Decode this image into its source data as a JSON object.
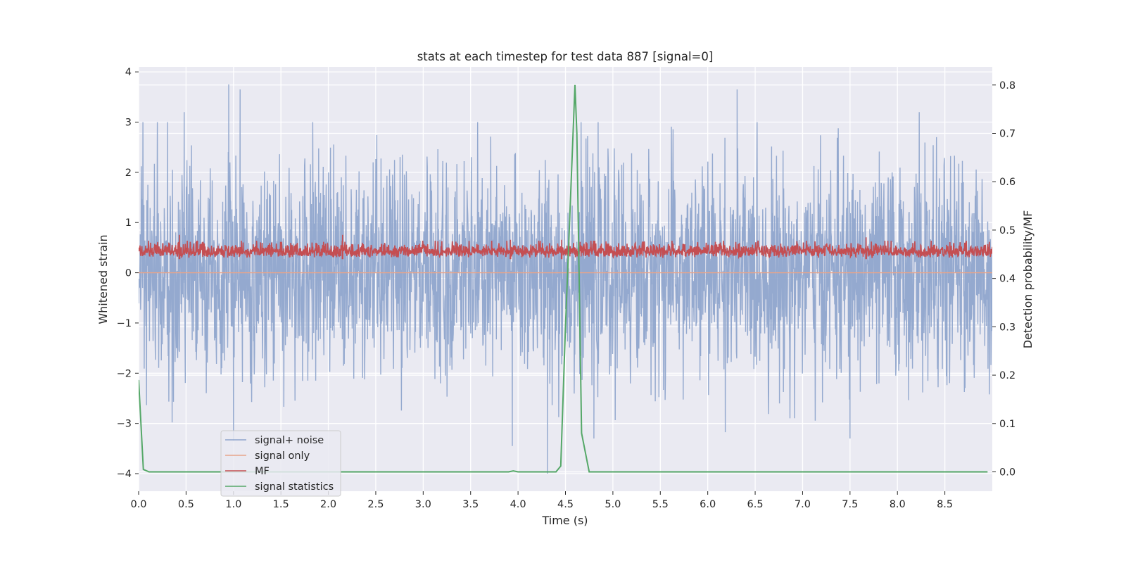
{
  "chart_data": {
    "type": "line",
    "title": "stats at each timestep for test data 887 [signal=0]",
    "xlabel": "Time (s)",
    "ylabel_left": "Whitened strain",
    "ylabel_right": "Detection probability/MF",
    "xlim": [
      0.0,
      9.0
    ],
    "ylim_left": [
      -4.35,
      4.1
    ],
    "ylim_right": [
      -0.04,
      0.8375
    ],
    "x_ticks": [
      "0.0",
      "0.5",
      "1.0",
      "1.5",
      "2.0",
      "2.5",
      "3.0",
      "3.5",
      "4.0",
      "4.5",
      "5.0",
      "5.5",
      "6.0",
      "6.5",
      "7.0",
      "7.5",
      "8.0",
      "8.5"
    ],
    "x_tick_values": [
      0.0,
      0.5,
      1.0,
      1.5,
      2.0,
      2.5,
      3.0,
      3.5,
      4.0,
      4.5,
      5.0,
      5.5,
      6.0,
      6.5,
      7.0,
      7.5,
      8.0,
      8.5
    ],
    "y_left_ticks": [
      "4",
      "3",
      "2",
      "1",
      "0",
      "−1",
      "−2",
      "−3",
      "−4"
    ],
    "y_left_tick_values": [
      4,
      3,
      2,
      1,
      0,
      -1,
      -2,
      -3,
      -4
    ],
    "y_right_ticks": [
      "0.8",
      "0.7",
      "0.6",
      "0.5",
      "0.4",
      "0.3",
      "0.2",
      "0.1",
      "0.0"
    ],
    "y_right_tick_values": [
      0.8,
      0.7,
      0.6,
      0.5,
      0.4,
      0.3,
      0.2,
      0.1,
      0.0
    ],
    "grid": true,
    "legend_position": "lower-left",
    "colors": {
      "signal_noise": "#8fa5cc",
      "signal_only": "#e8a48a",
      "mf": "#c44e52",
      "signal_statistics": "#55a868",
      "background": "#eaeaf2",
      "grid": "#ffffff"
    },
    "series": [
      {
        "name": "signal+ noise",
        "axis": "left",
        "description_envelope": "dense noise approximately between -4.0 and 3.75",
        "notable_peaks": [
          {
            "x": 0.95,
            "y": 3.75
          },
          {
            "x": 1.07,
            "y": 3.65
          },
          {
            "x": 0.48,
            "y": 3.2
          },
          {
            "x": 6.31,
            "y": 3.65
          },
          {
            "x": 8.23,
            "y": 3.2
          }
        ],
        "notable_troughs": [
          {
            "x": 4.31,
            "y": -4.0
          },
          {
            "x": 3.94,
            "y": -3.45
          },
          {
            "x": 1.0,
            "y": -3.35
          },
          {
            "x": 7.5,
            "y": -3.3
          },
          {
            "x": 4.8,
            "y": -3.3
          }
        ]
      },
      {
        "name": "signal only",
        "axis": "left",
        "values_note": "flat at 0 (no signal)",
        "x": [
          0.0,
          9.0
        ],
        "y": [
          0.0,
          0.0
        ]
      },
      {
        "name": "MF",
        "axis": "right",
        "description_envelope": "dense trace approximately between 0.42 and 0.49",
        "notable_peaks": [
          {
            "x": 0.43,
            "y": 0.49
          },
          {
            "x": 2.15,
            "y": 0.49
          },
          {
            "x": 3.92,
            "y": 0.48
          },
          {
            "x": 4.46,
            "y": 0.48
          },
          {
            "x": 7.67,
            "y": 0.485
          }
        ]
      },
      {
        "name": "signal statistics",
        "axis": "right",
        "x": [
          0.0,
          0.05,
          0.11,
          0.5,
          1.0,
          1.5,
          2.0,
          2.5,
          3.0,
          3.5,
          3.9,
          3.95,
          4.0,
          4.2,
          4.4,
          4.45,
          4.5,
          4.6,
          4.62,
          4.67,
          4.75,
          5.0,
          6.0,
          7.0,
          8.0,
          8.95
        ],
        "y": [
          0.19,
          0.005,
          0.0,
          0.0,
          0.0,
          0.0,
          0.0,
          0.0,
          0.0,
          0.0,
          0.0,
          0.002,
          0.0,
          0.0,
          0.0,
          0.012,
          0.3,
          0.8,
          0.7,
          0.08,
          0.0,
          0.0,
          0.0,
          0.0,
          0.0,
          0.0
        ]
      }
    ]
  }
}
